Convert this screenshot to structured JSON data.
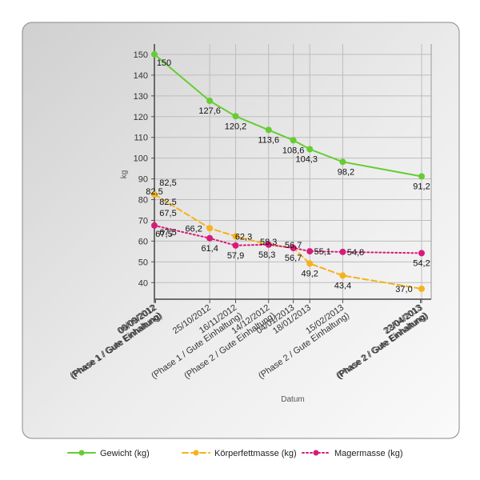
{
  "chart_data": {
    "type": "line",
    "xlabel": "Datum",
    "ylabel": "kg",
    "ylim": [
      32,
      155
    ],
    "yticks": [
      40,
      50,
      60,
      70,
      80,
      90,
      100,
      110,
      120,
      130,
      140,
      150
    ],
    "grid": true,
    "legend_placement": "bottom",
    "x_tick_labels": [
      {
        "line1": "08/09/2012",
        "line2": "(Phase 1 / Gute Einhaltung)",
        "x": "2012-09-08"
      },
      {
        "line1": "09/09/2012",
        "line2": "(Phase 1 / Gute Einhaltung)",
        "x": "2012-09-09"
      },
      {
        "line1": "25/10/2012",
        "line2": "",
        "x": "2012-10-25"
      },
      {
        "line1": "16/11/2012",
        "line2": "(Phase 1 / Gute Einhaltung)",
        "x": "2012-11-16"
      },
      {
        "line1": "14/12/2012",
        "line2": "(Phase 2 / Gute Einhaltung)",
        "x": "2012-12-14"
      },
      {
        "line1": "04/01/2013",
        "line2": "",
        "x": "2013-01-04"
      },
      {
        "line1": "18/01/2013",
        "line2": "",
        "x": "2013-01-18"
      },
      {
        "line1": "15/02/2013",
        "line2": "(Phase 2 / Gute Einhaltung)",
        "x": "2013-02-15"
      },
      {
        "line1": "22/04/2013",
        "line2": "(Phase 2 / Gute Einhaltung)",
        "x": "2013-04-22"
      },
      {
        "line1": "23/04/2013",
        "line2": "(Phase 2 / Gute Einhaltung)",
        "x": "2013-04-23"
      }
    ],
    "series": [
      {
        "name": "Gewicht (kg)",
        "color": "#66cc33",
        "style": "solid",
        "x": [
          "2012-09-08",
          "2012-10-25",
          "2012-11-16",
          "2012-12-14",
          "2013-01-04",
          "2013-01-18",
          "2013-02-15",
          "2013-04-23"
        ],
        "values": [
          150,
          127.6,
          120.2,
          113.6,
          108.6,
          104.3,
          98.2,
          91.2
        ],
        "labels": [
          "150",
          "127,6",
          "120,2",
          "113,6",
          "108,6",
          "104,3",
          "98,2",
          "91,2"
        ]
      },
      {
        "name": "Körperfettmasse (kg)",
        "color": "#f5b21b",
        "style": "dashed",
        "x": [
          "2012-09-08",
          "2012-10-25",
          "2012-11-16",
          "2012-12-14",
          "2013-01-04",
          "2013-01-18",
          "2013-02-15",
          "2013-04-23"
        ],
        "values": [
          82.5,
          66.2,
          62.3,
          58.3,
          56.7,
          49.2,
          43.4,
          37.0
        ],
        "labels": [
          "82,5",
          "66,2",
          "62,3",
          "58,3",
          "56,7",
          "49,2",
          "43,4",
          "37,0"
        ]
      },
      {
        "name": "Magermasse (kg)",
        "color": "#d81b7a",
        "style": "dotted",
        "x": [
          "2012-09-08",
          "2012-10-25",
          "2012-11-16",
          "2012-12-14",
          "2013-01-04",
          "2013-01-18",
          "2013-02-15",
          "2013-04-23"
        ],
        "values": [
          67.5,
          61.4,
          57.9,
          58.3,
          56.7,
          55.1,
          54.8,
          54.2
        ],
        "labels": [
          "67,5",
          "61,4",
          "57,9",
          "58,3",
          "56,7",
          "55,1",
          "54,8",
          "54,2"
        ]
      }
    ],
    "extra_labels": [
      "82,5",
      "82,5",
      "67,5",
      "67,5"
    ]
  }
}
